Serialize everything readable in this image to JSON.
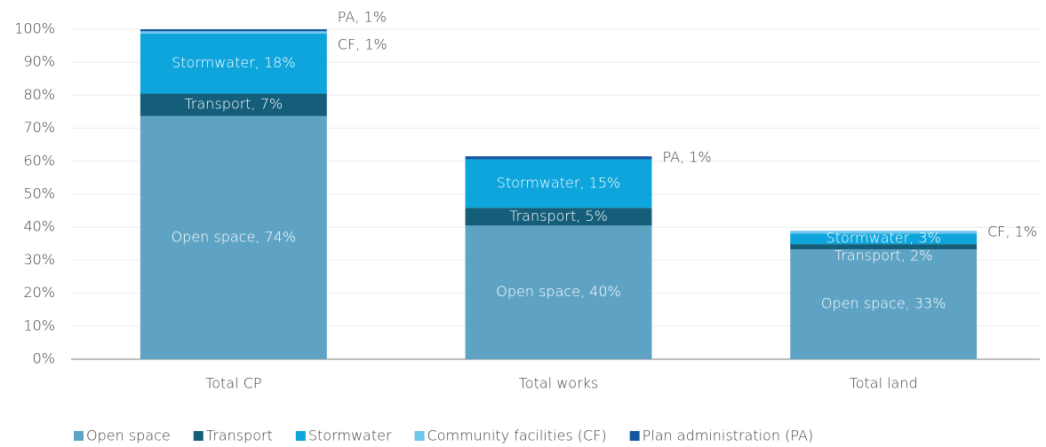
{
  "chart_data": {
    "type": "stacked_bar",
    "categories": [
      "Total CP",
      "Total works",
      "Total land"
    ],
    "series": [
      {
        "name": "Open space",
        "color": "#5fa3c4",
        "values": [
          73.7,
          40.5,
          33.3
        ],
        "value_labels": [
          "Open space, 74%",
          "Open space, 40%",
          "Open space, 33%"
        ]
      },
      {
        "name": "Transport",
        "color": "#155e7a",
        "values": [
          6.8,
          5.4,
          1.6
        ],
        "value_labels": [
          "Transport, 7%",
          "Transport, 5%",
          "Transport, 2%"
        ]
      },
      {
        "name": "Stormwater",
        "color": "#0ea5dc",
        "values": [
          18.2,
          14.7,
          3.2
        ],
        "value_labels": [
          "Stormwater, 18%",
          "Stormwater, 15%",
          "Stormwater, 3%"
        ]
      },
      {
        "name": "Community facilities (CF)",
        "color": "#6ec6ea",
        "values": [
          0.7,
          0,
          0.8
        ],
        "value_labels": [
          "CF, 1%",
          null,
          "CF, 1%"
        ]
      },
      {
        "name": "Plan administration (PA)",
        "color": "#1457a0",
        "values": [
          0.6,
          0.9,
          0
        ],
        "value_labels": [
          "PA, 1%",
          "PA, 1%",
          null
        ]
      }
    ],
    "ylim": [
      0,
      100
    ],
    "yticks": [
      {
        "value": 0,
        "label": "0%"
      },
      {
        "value": 10,
        "label": "10%"
      },
      {
        "value": 20,
        "label": "20%"
      },
      {
        "value": 30,
        "label": "30%"
      },
      {
        "value": 40,
        "label": "40%"
      },
      {
        "value": 50,
        "label": "50%"
      },
      {
        "value": 60,
        "label": "60%"
      },
      {
        "value": 70,
        "label": "70%"
      },
      {
        "value": 80,
        "label": "80%"
      },
      {
        "value": 90,
        "label": "90%"
      },
      {
        "value": 100,
        "label": "100%"
      }
    ],
    "grid": true,
    "legend": "bottom"
  }
}
